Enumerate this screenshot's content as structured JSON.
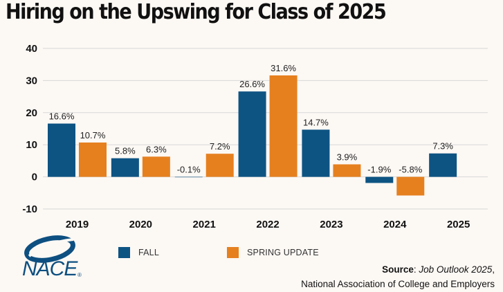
{
  "title": "Hiring on the Upswing for Class of 2025",
  "colors": {
    "fall": "#0d5483",
    "spring": "#e6801f",
    "background": "#fcf8f4"
  },
  "legend": [
    {
      "key": "fall",
      "label": "FALL"
    },
    {
      "key": "spring",
      "label": "SPRING UPDATE"
    }
  ],
  "logo": {
    "text": "NACE",
    "mark": "®",
    "icon": "nace-swoosh-logo"
  },
  "source": {
    "label": "Source",
    "publication": "Job Outlook 2025",
    "organization": "National Association of College and Employers"
  },
  "chart_data": {
    "type": "bar",
    "categories": [
      "2019",
      "2020",
      "2021",
      "2022",
      "2023",
      "2024",
      "2025"
    ],
    "series": [
      {
        "name": "FALL",
        "values": [
          16.6,
          5.8,
          -0.1,
          26.6,
          14.7,
          -1.9,
          7.3
        ],
        "labels": [
          "16.6%",
          "5.8%",
          "-0.1%",
          "26.6%",
          "14.7%",
          "-1.9%",
          "7.3%"
        ]
      },
      {
        "name": "SPRING UPDATE",
        "values": [
          10.7,
          6.3,
          7.2,
          31.6,
          3.9,
          -5.8,
          null
        ],
        "labels": [
          "10.7%",
          "6.3%",
          "7.2%",
          "31.6%",
          "3.9%",
          "-5.8%",
          ""
        ]
      }
    ],
    "yticks": [
      "40",
      "30",
      "20",
      "10",
      "0",
      "-10"
    ],
    "ylim": [
      -10,
      40
    ],
    "grid": true,
    "legend_position": "bottom"
  }
}
